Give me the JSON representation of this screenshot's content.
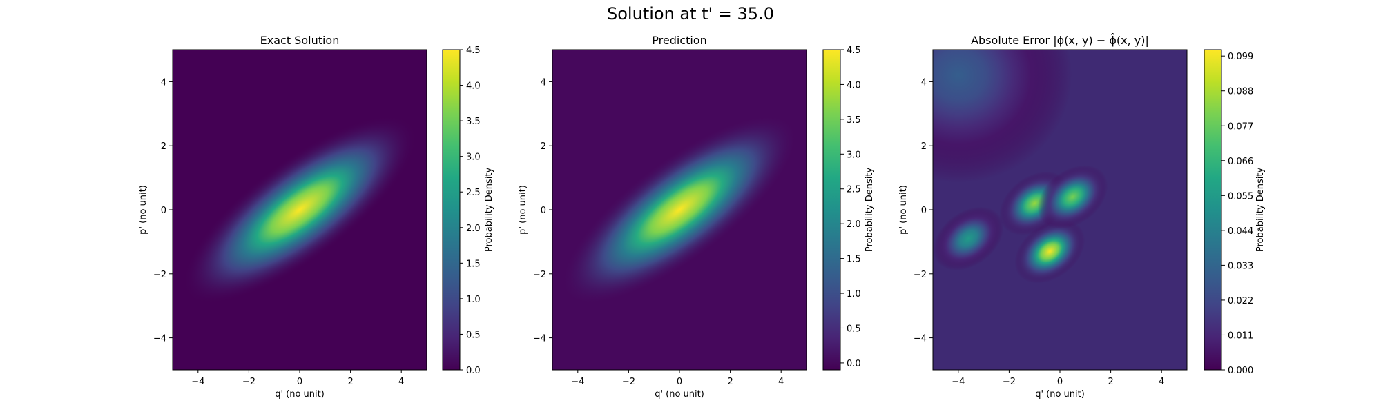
{
  "figure": {
    "suptitle": "Solution at t' = 35.0"
  },
  "colors": {
    "viridis_stops": [
      "#440154",
      "#482475",
      "#414487",
      "#355f8d",
      "#2a788e",
      "#21918c",
      "#22a884",
      "#44bf70",
      "#7ad151",
      "#bddf26",
      "#fde725"
    ]
  },
  "chart_data": [
    {
      "type": "heatmap",
      "title": "Exact Solution",
      "xlabel": "q' (no unit)",
      "ylabel": "p' (no unit)",
      "xlim": [
        -5,
        5
      ],
      "ylim": [
        -5,
        5
      ],
      "xticks": [
        -4,
        -2,
        0,
        2,
        4
      ],
      "yticks": [
        -4,
        -2,
        0,
        2,
        4
      ],
      "colorbar": {
        "label": "Probability Density",
        "vmin": 0.0,
        "vmax": 4.5,
        "ticks": [
          "0.0",
          "0.5",
          "1.0",
          "1.5",
          "2.0",
          "2.5",
          "3.0",
          "3.5",
          "4.0",
          "4.5"
        ]
      },
      "field": {
        "kind": "rotated_gaussian",
        "peak": 4.5,
        "center": [
          0,
          0
        ],
        "angle_deg": 37,
        "sigma_major": 2.0,
        "sigma_minor": 0.55
      }
    },
    {
      "type": "heatmap",
      "title": "Prediction",
      "xlabel": "q' (no unit)",
      "ylabel": "p' (no unit)",
      "xlim": [
        -5,
        5
      ],
      "ylim": [
        -5,
        5
      ],
      "xticks": [
        -4,
        -2,
        0,
        2,
        4
      ],
      "yticks": [
        -4,
        -2,
        0,
        2,
        4
      ],
      "colorbar": {
        "label": "Probability Density",
        "vmin": -0.1,
        "vmax": 4.5,
        "ticks": [
          "0.0",
          "0.5",
          "1.0",
          "1.5",
          "2.0",
          "2.5",
          "3.0",
          "3.5",
          "4.0",
          "4.5"
        ]
      },
      "field": {
        "kind": "rotated_gaussian",
        "peak": 4.45,
        "center": [
          0,
          0
        ],
        "angle_deg": 37,
        "sigma_major": 2.0,
        "sigma_minor": 0.55,
        "background": 0.05
      }
    },
    {
      "type": "heatmap",
      "title": "Absolute Error |ϕ(x, y) − ϕ̂(x, y)|",
      "xlabel": "q' (no unit)",
      "ylabel": "p' (no unit)",
      "xlim": [
        -5,
        5
      ],
      "ylim": [
        -5,
        5
      ],
      "xticks": [
        -4,
        -2,
        0,
        2,
        4
      ],
      "yticks": [
        -4,
        -2,
        0,
        2,
        4
      ],
      "colorbar": {
        "label": "Probability Density",
        "vmin": 0.0,
        "vmax": 0.101,
        "ticks": [
          "0.000",
          "0.011",
          "0.022",
          "0.033",
          "0.044",
          "0.055",
          "0.066",
          "0.077",
          "0.088",
          "0.099"
        ]
      },
      "field": {
        "kind": "error_blobs",
        "peaks": [
          {
            "q": -0.4,
            "p": -1.3,
            "value": 0.1
          },
          {
            "q": -1.0,
            "p": 0.2,
            "value": 0.085
          },
          {
            "q": 0.5,
            "p": 0.4,
            "value": 0.08
          },
          {
            "q": -3.6,
            "p": -0.9,
            "value": 0.055
          },
          {
            "q": -4.0,
            "p": 4.2,
            "value": 0.03
          }
        ]
      }
    }
  ]
}
